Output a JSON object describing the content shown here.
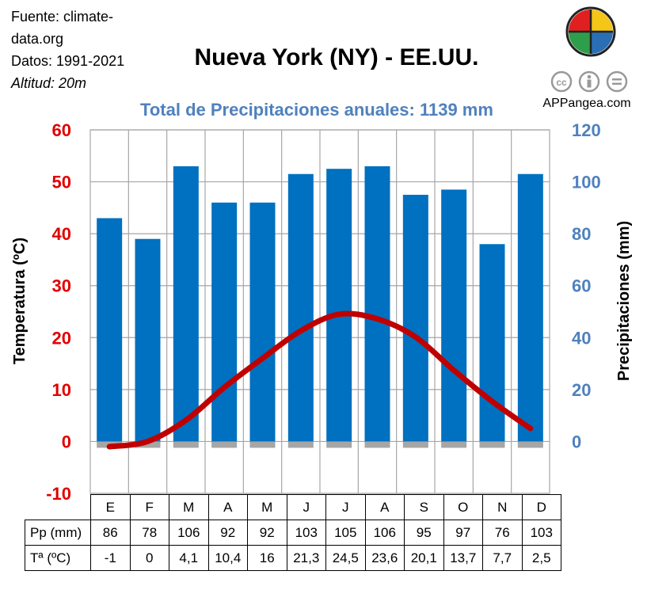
{
  "header": {
    "source_line1": "Fuente: climate-",
    "source_line2": "data.org",
    "dates": "Datos: 1991-2021",
    "altitude": "Altitud: 20m",
    "title": "Nueva York (NY) - EE.UU.",
    "subtitle": "Total de Precipitaciones anuales: 1139 mm",
    "brand": "APPangea.com",
    "logo_colors": [
      "#e02020",
      "#f5c518",
      "#2e9e4a",
      "#2a6fb5"
    ]
  },
  "chart_data": {
    "type": "bar",
    "title": "Nueva York (NY) - EE.UU.",
    "subtitle": "Total de Precipitaciones anuales: 1139 mm",
    "categories": [
      "E",
      "F",
      "M",
      "A",
      "M",
      "J",
      "J",
      "A",
      "S",
      "O",
      "N",
      "D"
    ],
    "series": [
      {
        "name": "Pp (mm)",
        "type": "bar",
        "axis": "right",
        "color": "#0070c0",
        "values": [
          86,
          78,
          106,
          92,
          92,
          103,
          105,
          106,
          95,
          97,
          76,
          103
        ],
        "labels": [
          "86",
          "78",
          "106",
          "92",
          "92",
          "103",
          "105",
          "106",
          "95",
          "97",
          "76",
          "103"
        ]
      },
      {
        "name": "Tª (ºC)",
        "type": "line",
        "axis": "left",
        "color": "#c00000",
        "values": [
          -1,
          0,
          4.1,
          10.4,
          16,
          21.3,
          24.5,
          23.6,
          20.1,
          13.7,
          7.7,
          2.5
        ],
        "labels": [
          "-1",
          "0",
          "4,1",
          "10,4",
          "16",
          "21,3",
          "24,5",
          "23,6",
          "20,1",
          "13,7",
          "7,7",
          "2,5"
        ]
      }
    ],
    "ylabel_left": "Temperatura (ºC)",
    "ylabel_right": "Precipitaciones (mm)",
    "ylim_left": [
      -10,
      60
    ],
    "yticks_left": [
      "-10",
      "0",
      "10",
      "20",
      "30",
      "40",
      "50",
      "60"
    ],
    "ylim_right": [
      -20,
      120
    ],
    "yticks_right": [
      "0",
      "20",
      "40",
      "60",
      "80",
      "100",
      "120"
    ],
    "grid": true,
    "legend": "table-below"
  }
}
